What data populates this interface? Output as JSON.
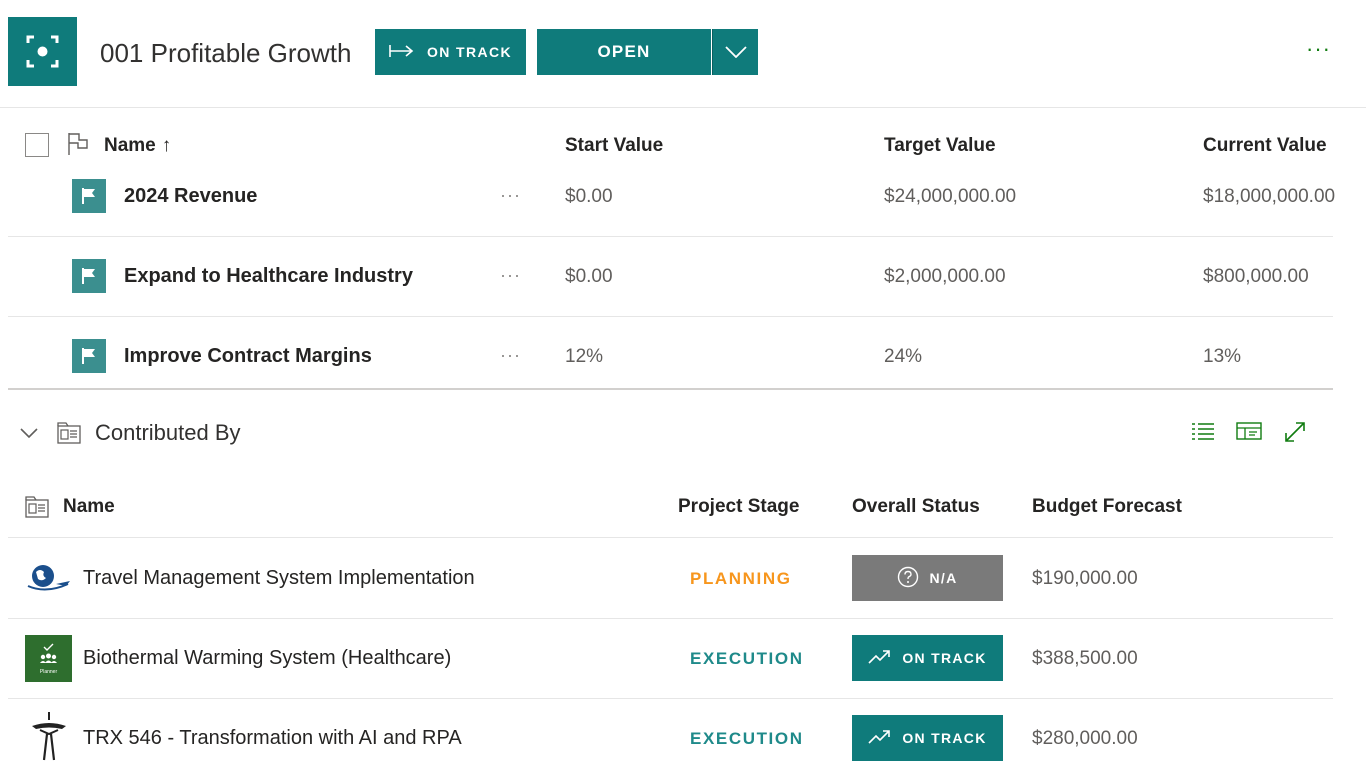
{
  "header": {
    "title": "001 Profitable Growth",
    "status_label": "ON TRACK",
    "open_label": "OPEN",
    "more_label": "···",
    "accent_color": "#0f7b7b"
  },
  "goals_table": {
    "columns": {
      "name": "Name",
      "start": "Start Value",
      "target": "Target Value",
      "current": "Current Value"
    },
    "sort_indicator": "↑",
    "rows": [
      {
        "name": "2024 Revenue",
        "more": "···",
        "start": "$0.00",
        "target": "$24,000,000.00",
        "current": "$18,000,000.00"
      },
      {
        "name": "Expand to Healthcare Industry",
        "more": "···",
        "start": "$0.00",
        "target": "$2,000,000.00",
        "current": "$800,000.00"
      },
      {
        "name": "Improve Contract Margins",
        "more": "···",
        "start": "12%",
        "target": "24%",
        "current": "13%"
      }
    ]
  },
  "contributed_section": {
    "title": "Contributed By",
    "columns": {
      "name": "Name",
      "stage": "Project Stage",
      "status": "Overall Status",
      "budget": "Budget Forecast"
    },
    "rows": [
      {
        "name": "Travel Management System Implementation",
        "stage": "PLANNING",
        "stage_color": "#f7961d",
        "status": "N/A",
        "status_color": "#7a7a7a",
        "status_icon": "question-circle-icon",
        "budget": "$190,000.00",
        "logo": "travel-globe-logo"
      },
      {
        "name": "Biothermal Warming System (Healthcare)",
        "stage": "EXECUTION",
        "stage_color": "#1f8a8a",
        "status": "ON TRACK",
        "status_color": "#0f7b7b",
        "status_icon": "trend-up-icon",
        "budget": "$388,500.00",
        "logo": "planner-logo",
        "logo_caption": "Planner"
      },
      {
        "name": "TRX 546 - Transformation with AI and RPA",
        "stage": "EXECUTION",
        "stage_color": "#1f8a8a",
        "status": "ON TRACK",
        "status_color": "#0f7b7b",
        "status_icon": "trend-up-icon",
        "budget": "$280,000.00",
        "logo": "space-needle-logo"
      }
    ]
  }
}
